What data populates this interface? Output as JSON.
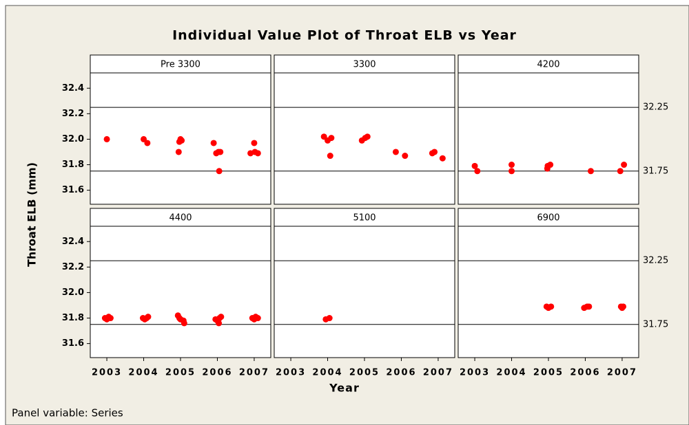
{
  "chart_data": {
    "type": "panel",
    "title": "Individual Value Plot of Throat ELB vs Year",
    "xlabel": "Year",
    "ylabel": "Throat ELB (mm)",
    "note": "Panel variable: Series",
    "color": "#ff0000",
    "xlim": [
      2002.55,
      2007.45
    ],
    "xticks": [
      2003,
      2004,
      2005,
      2006,
      2007
    ],
    "ylim": [
      31.49,
      32.52
    ],
    "yticks": [
      31.6,
      31.8,
      {
        "value": 32,
        "label": "32.0"
      },
      32.2,
      32.4
    ],
    "reference_lines": [
      {
        "value": 32.25,
        "label": "32.25"
      },
      {
        "value": 31.75,
        "label": "31.75"
      }
    ],
    "panels": [
      {
        "type": "scatter",
        "title": "Pre 3300",
        "x": [
          2003,
          2004,
          2004.1,
          2004.95,
          2004.97,
          2005,
          2005.03,
          2005.9,
          2005.97,
          2006.03,
          2006.05,
          2006.08,
          2006.9,
          2007,
          2007.02,
          2007.1
        ],
        "y": [
          32.0,
          32.0,
          31.97,
          31.9,
          31.98,
          32.0,
          31.99,
          31.97,
          31.89,
          31.9,
          31.75,
          31.9,
          31.89,
          31.97,
          31.9,
          31.89
        ]
      },
      {
        "type": "scatter",
        "title": "3300",
        "x": [
          2003.9,
          2004,
          2004.1,
          2004.07,
          2004.93,
          2005.02,
          2005.08,
          2005.85,
          2006.1,
          2006.84,
          2006.9,
          2007.12
        ],
        "y": [
          32.02,
          31.99,
          32.01,
          31.87,
          31.99,
          32.01,
          32.02,
          31.9,
          31.87,
          31.89,
          31.9,
          31.85
        ]
      },
      {
        "type": "scatter",
        "title": "4200",
        "x": [
          2003,
          2003.07,
          2004,
          2004,
          2004.98,
          2005.05,
          2004.97,
          2006.15,
          2006.95,
          2007.05
        ],
        "y": [
          31.79,
          31.75,
          31.8,
          31.75,
          31.79,
          31.8,
          31.77,
          31.75,
          31.75,
          31.8
        ]
      },
      {
        "type": "scatter",
        "title": "4400",
        "x": [
          2002.95,
          2003,
          2003.05,
          2003.1,
          2003.98,
          2004.03,
          2004.08,
          2004.12,
          2004.93,
          2004.97,
          2005,
          2005.08,
          2005.1,
          2005.95,
          2006,
          2006.04,
          2006.06,
          2006.1,
          2006.95,
          2007,
          2007.04,
          2007.1
        ],
        "y": [
          31.8,
          31.79,
          31.81,
          31.8,
          31.8,
          31.79,
          31.8,
          31.81,
          31.82,
          31.8,
          31.79,
          31.78,
          31.76,
          31.79,
          31.78,
          31.76,
          31.8,
          31.81,
          31.8,
          31.79,
          31.81,
          31.8
        ]
      },
      {
        "type": "scatter",
        "title": "5100",
        "x": [
          2003.95,
          2004.05
        ],
        "y": [
          31.79,
          31.8
        ]
      },
      {
        "type": "scatter",
        "title": "6900",
        "x": [
          2004.95,
          2005,
          2005.07,
          2005.97,
          2006.05,
          2006.1,
          2006.97,
          2007,
          2007.03
        ],
        "y": [
          31.89,
          31.88,
          31.89,
          31.88,
          31.89,
          31.89,
          31.89,
          31.88,
          31.89
        ]
      }
    ]
  }
}
